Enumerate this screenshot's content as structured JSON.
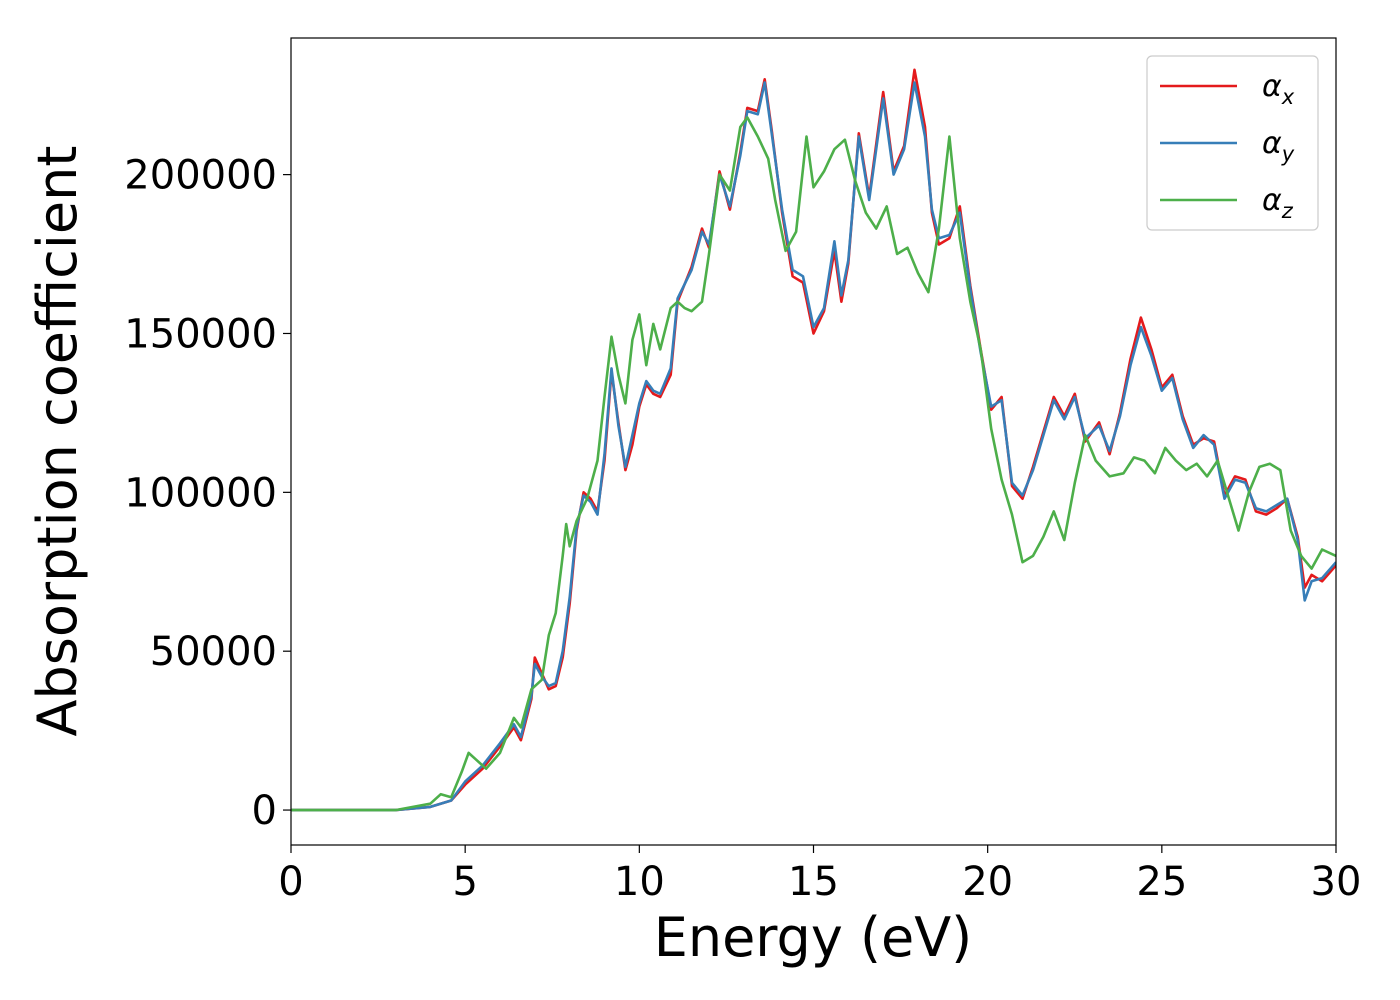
{
  "chart_data": {
    "type": "line",
    "xlabel": "Energy (eV)",
    "ylabel": "Absorption coefficient",
    "xlim": [
      0,
      30
    ],
    "ylim": [
      -11000,
      243000
    ],
    "xticks": [
      "0",
      "5",
      "10",
      "15",
      "20",
      "25",
      "30"
    ],
    "yticks": [
      "0",
      "50000",
      "100000",
      "150000",
      "200000"
    ],
    "grid": false,
    "legend_position": "top-right",
    "series": [
      {
        "name": "α",
        "subscript": "x",
        "color": "#e41a1c",
        "points": [
          [
            0,
            0
          ],
          [
            3,
            0
          ],
          [
            4,
            1000
          ],
          [
            4.6,
            3000
          ],
          [
            5,
            8000
          ],
          [
            5.5,
            13000
          ],
          [
            6,
            20000
          ],
          [
            6.4,
            26000
          ],
          [
            6.6,
            22000
          ],
          [
            6.9,
            35000
          ],
          [
            7,
            48000
          ],
          [
            7.2,
            43000
          ],
          [
            7.4,
            38000
          ],
          [
            7.6,
            39000
          ],
          [
            7.8,
            48000
          ],
          [
            8,
            65000
          ],
          [
            8.2,
            88000
          ],
          [
            8.4,
            100000
          ],
          [
            8.6,
            98000
          ],
          [
            8.8,
            94000
          ],
          [
            9,
            110000
          ],
          [
            9.2,
            138000
          ],
          [
            9.4,
            122000
          ],
          [
            9.6,
            107000
          ],
          [
            9.8,
            115000
          ],
          [
            10,
            127000
          ],
          [
            10.2,
            134000
          ],
          [
            10.4,
            131000
          ],
          [
            10.6,
            130000
          ],
          [
            10.9,
            137000
          ],
          [
            11.1,
            160000
          ],
          [
            11.5,
            171000
          ],
          [
            11.8,
            183000
          ],
          [
            12,
            177000
          ],
          [
            12.3,
            201000
          ],
          [
            12.6,
            189000
          ],
          [
            12.9,
            207000
          ],
          [
            13.1,
            221000
          ],
          [
            13.4,
            220000
          ],
          [
            13.6,
            230000
          ],
          [
            13.8,
            214000
          ],
          [
            14.1,
            188000
          ],
          [
            14.4,
            168000
          ],
          [
            14.7,
            166000
          ],
          [
            15,
            150000
          ],
          [
            15.3,
            157000
          ],
          [
            15.6,
            176000
          ],
          [
            15.8,
            160000
          ],
          [
            16,
            172000
          ],
          [
            16.3,
            213000
          ],
          [
            16.6,
            193000
          ],
          [
            17,
            226000
          ],
          [
            17.3,
            201000
          ],
          [
            17.6,
            209000
          ],
          [
            17.9,
            233000
          ],
          [
            18.2,
            215000
          ],
          [
            18.4,
            188000
          ],
          [
            18.6,
            178000
          ],
          [
            18.9,
            180000
          ],
          [
            19.2,
            190000
          ],
          [
            19.5,
            165000
          ],
          [
            19.8,
            145000
          ],
          [
            20.1,
            126000
          ],
          [
            20.4,
            130000
          ],
          [
            20.7,
            102000
          ],
          [
            21,
            98000
          ],
          [
            21.3,
            108000
          ],
          [
            21.6,
            119000
          ],
          [
            21.9,
            130000
          ],
          [
            22.2,
            124000
          ],
          [
            22.5,
            131000
          ],
          [
            22.8,
            116000
          ],
          [
            23.2,
            122000
          ],
          [
            23.5,
            112000
          ],
          [
            23.8,
            125000
          ],
          [
            24.1,
            142000
          ],
          [
            24.4,
            155000
          ],
          [
            24.7,
            145000
          ],
          [
            25,
            133000
          ],
          [
            25.3,
            137000
          ],
          [
            25.6,
            124000
          ],
          [
            25.9,
            115000
          ],
          [
            26.2,
            117000
          ],
          [
            26.5,
            116000
          ],
          [
            26.8,
            99000
          ],
          [
            27.1,
            105000
          ],
          [
            27.4,
            104000
          ],
          [
            27.7,
            94000
          ],
          [
            28,
            93000
          ],
          [
            28.3,
            95000
          ],
          [
            28.6,
            98000
          ],
          [
            28.9,
            86000
          ],
          [
            29.1,
            70000
          ],
          [
            29.3,
            74000
          ],
          [
            29.6,
            72000
          ],
          [
            30,
            77000
          ]
        ]
      },
      {
        "name": "α",
        "subscript": "y",
        "color": "#377eb8",
        "points": [
          [
            0,
            0
          ],
          [
            3,
            0
          ],
          [
            4,
            1000
          ],
          [
            4.6,
            3000
          ],
          [
            5,
            9000
          ],
          [
            5.5,
            14000
          ],
          [
            6,
            21000
          ],
          [
            6.4,
            27000
          ],
          [
            6.6,
            23000
          ],
          [
            6.9,
            36000
          ],
          [
            7,
            46000
          ],
          [
            7.2,
            42000
          ],
          [
            7.4,
            39000
          ],
          [
            7.6,
            40000
          ],
          [
            7.8,
            50000
          ],
          [
            8,
            67000
          ],
          [
            8.2,
            89000
          ],
          [
            8.4,
            99000
          ],
          [
            8.6,
            97000
          ],
          [
            8.8,
            93000
          ],
          [
            9,
            112000
          ],
          [
            9.2,
            139000
          ],
          [
            9.4,
            121000
          ],
          [
            9.6,
            108000
          ],
          [
            9.8,
            118000
          ],
          [
            10,
            128000
          ],
          [
            10.2,
            135000
          ],
          [
            10.4,
            132000
          ],
          [
            10.6,
            131000
          ],
          [
            10.9,
            139000
          ],
          [
            11.1,
            161000
          ],
          [
            11.5,
            170000
          ],
          [
            11.8,
            182000
          ],
          [
            12,
            178000
          ],
          [
            12.3,
            200000
          ],
          [
            12.6,
            190000
          ],
          [
            12.9,
            206000
          ],
          [
            13.1,
            220000
          ],
          [
            13.4,
            219000
          ],
          [
            13.6,
            229000
          ],
          [
            13.8,
            213000
          ],
          [
            14.1,
            189000
          ],
          [
            14.4,
            170000
          ],
          [
            14.7,
            168000
          ],
          [
            15,
            152000
          ],
          [
            15.3,
            158000
          ],
          [
            15.6,
            179000
          ],
          [
            15.8,
            162000
          ],
          [
            16,
            173000
          ],
          [
            16.3,
            212000
          ],
          [
            16.6,
            192000
          ],
          [
            17,
            224000
          ],
          [
            17.3,
            200000
          ],
          [
            17.6,
            208000
          ],
          [
            17.9,
            229000
          ],
          [
            18.2,
            212000
          ],
          [
            18.4,
            189000
          ],
          [
            18.6,
            180000
          ],
          [
            18.9,
            181000
          ],
          [
            19.2,
            188000
          ],
          [
            19.5,
            164000
          ],
          [
            19.8,
            144000
          ],
          [
            20.1,
            127000
          ],
          [
            20.4,
            129000
          ],
          [
            20.7,
            103000
          ],
          [
            21,
            99000
          ],
          [
            21.3,
            107000
          ],
          [
            21.6,
            118000
          ],
          [
            21.9,
            129000
          ],
          [
            22.2,
            123000
          ],
          [
            22.5,
            130000
          ],
          [
            22.8,
            117000
          ],
          [
            23.2,
            121000
          ],
          [
            23.5,
            113000
          ],
          [
            23.8,
            124000
          ],
          [
            24.1,
            140000
          ],
          [
            24.4,
            152000
          ],
          [
            24.7,
            143000
          ],
          [
            25,
            132000
          ],
          [
            25.3,
            136000
          ],
          [
            25.6,
            123000
          ],
          [
            25.9,
            114000
          ],
          [
            26.2,
            118000
          ],
          [
            26.5,
            115000
          ],
          [
            26.8,
            98000
          ],
          [
            27.1,
            104000
          ],
          [
            27.4,
            103000
          ],
          [
            27.7,
            95000
          ],
          [
            28,
            94000
          ],
          [
            28.3,
            96000
          ],
          [
            28.6,
            98000
          ],
          [
            28.9,
            85000
          ],
          [
            29.1,
            66000
          ],
          [
            29.3,
            72000
          ],
          [
            29.6,
            73000
          ],
          [
            30,
            78000
          ]
        ]
      },
      {
        "name": "α",
        "subscript": "z",
        "color": "#4daf4a",
        "points": [
          [
            0,
            0
          ],
          [
            3,
            0
          ],
          [
            4,
            2000
          ],
          [
            4.3,
            5000
          ],
          [
            4.6,
            4000
          ],
          [
            4.9,
            12000
          ],
          [
            5.1,
            18000
          ],
          [
            5.3,
            16000
          ],
          [
            5.6,
            13000
          ],
          [
            6,
            18000
          ],
          [
            6.4,
            29000
          ],
          [
            6.6,
            26000
          ],
          [
            6.9,
            38000
          ],
          [
            7.2,
            41000
          ],
          [
            7.4,
            55000
          ],
          [
            7.6,
            62000
          ],
          [
            7.8,
            80000
          ],
          [
            7.9,
            90000
          ],
          [
            8,
            83000
          ],
          [
            8.2,
            91000
          ],
          [
            8.5,
            98000
          ],
          [
            8.8,
            110000
          ],
          [
            9,
            130000
          ],
          [
            9.2,
            149000
          ],
          [
            9.4,
            137000
          ],
          [
            9.6,
            128000
          ],
          [
            9.8,
            148000
          ],
          [
            10,
            156000
          ],
          [
            10.2,
            140000
          ],
          [
            10.4,
            153000
          ],
          [
            10.6,
            145000
          ],
          [
            10.9,
            158000
          ],
          [
            11.1,
            160000
          ],
          [
            11.3,
            158000
          ],
          [
            11.5,
            157000
          ],
          [
            11.8,
            160000
          ],
          [
            12,
            175000
          ],
          [
            12.3,
            200000
          ],
          [
            12.6,
            195000
          ],
          [
            12.9,
            215000
          ],
          [
            13.1,
            218000
          ],
          [
            13.4,
            212000
          ],
          [
            13.7,
            205000
          ],
          [
            13.9,
            192000
          ],
          [
            14.2,
            176000
          ],
          [
            14.5,
            182000
          ],
          [
            14.8,
            212000
          ],
          [
            15,
            196000
          ],
          [
            15.3,
            201000
          ],
          [
            15.6,
            208000
          ],
          [
            15.9,
            211000
          ],
          [
            16.2,
            198000
          ],
          [
            16.5,
            188000
          ],
          [
            16.8,
            183000
          ],
          [
            17.1,
            190000
          ],
          [
            17.4,
            175000
          ],
          [
            17.7,
            177000
          ],
          [
            18,
            169000
          ],
          [
            18.3,
            163000
          ],
          [
            18.6,
            183000
          ],
          [
            18.9,
            212000
          ],
          [
            19.2,
            180000
          ],
          [
            19.5,
            160000
          ],
          [
            19.8,
            145000
          ],
          [
            20.1,
            120000
          ],
          [
            20.4,
            104000
          ],
          [
            20.7,
            93000
          ],
          [
            21,
            78000
          ],
          [
            21.3,
            80000
          ],
          [
            21.6,
            86000
          ],
          [
            21.9,
            94000
          ],
          [
            22.2,
            85000
          ],
          [
            22.5,
            103000
          ],
          [
            22.8,
            118000
          ],
          [
            23.1,
            110000
          ],
          [
            23.5,
            105000
          ],
          [
            23.9,
            106000
          ],
          [
            24.2,
            111000
          ],
          [
            24.5,
            110000
          ],
          [
            24.8,
            106000
          ],
          [
            25.1,
            114000
          ],
          [
            25.4,
            110000
          ],
          [
            25.7,
            107000
          ],
          [
            26,
            109000
          ],
          [
            26.3,
            105000
          ],
          [
            26.6,
            110000
          ],
          [
            26.9,
            99000
          ],
          [
            27.2,
            88000
          ],
          [
            27.5,
            100000
          ],
          [
            27.8,
            108000
          ],
          [
            28.1,
            109000
          ],
          [
            28.4,
            107000
          ],
          [
            28.7,
            88000
          ],
          [
            29,
            80000
          ],
          [
            29.3,
            76000
          ],
          [
            29.6,
            82000
          ],
          [
            30,
            80000
          ]
        ]
      }
    ]
  }
}
